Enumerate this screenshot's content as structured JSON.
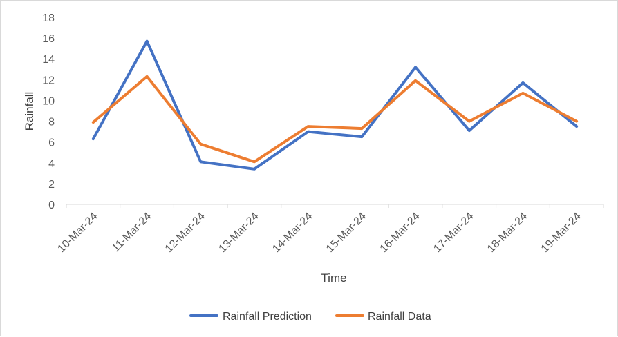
{
  "chart_data": {
    "type": "line",
    "title": "",
    "xlabel": "Time",
    "ylabel": "Rainfall",
    "ylim": [
      0,
      18
    ],
    "ytick_step": 2,
    "y_ticks": [
      "0",
      "2",
      "4",
      "6",
      "8",
      "10",
      "12",
      "14",
      "16",
      "18"
    ],
    "grid": false,
    "legend_position": "bottom",
    "categories": [
      "10-Mar-24",
      "11-Mar-24",
      "12-Mar-24",
      "13-Mar-24",
      "14-Mar-24",
      "15-Mar-24",
      "16-Mar-24",
      "17-Mar-24",
      "18-Mar-24",
      "19-Mar-24"
    ],
    "series": [
      {
        "name": "Rainfall Prediction",
        "color": "#4472c4",
        "values": [
          6.3,
          15.7,
          4.1,
          3.4,
          7.0,
          6.5,
          13.2,
          7.1,
          11.7,
          7.5
        ]
      },
      {
        "name": "Rainfall Data",
        "color": "#ed7d31",
        "values": [
          7.9,
          12.3,
          5.8,
          4.1,
          7.5,
          7.3,
          11.9,
          8.0,
          10.7,
          8.0
        ]
      }
    ]
  }
}
